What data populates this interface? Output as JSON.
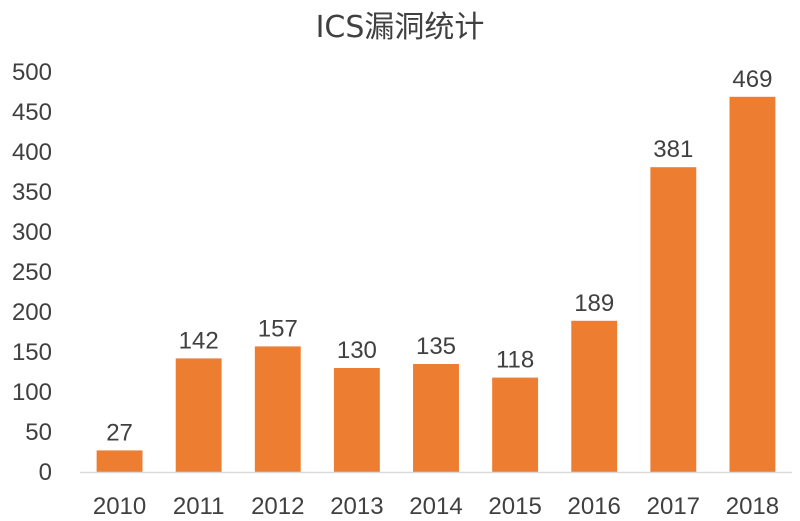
{
  "chart_data": {
    "type": "bar",
    "title": "ICS漏洞统计",
    "xlabel": "",
    "ylabel": "",
    "categories": [
      "2010",
      "2011",
      "2012",
      "2013",
      "2014",
      "2015",
      "2016",
      "2017",
      "2018"
    ],
    "values": [
      27,
      142,
      157,
      130,
      135,
      118,
      189,
      381,
      469
    ],
    "ylim": [
      0,
      500
    ],
    "yticks": [
      0,
      50,
      100,
      150,
      200,
      250,
      300,
      350,
      400,
      450,
      500
    ],
    "grid": false,
    "legend": "none",
    "bar_color": "#ED7D31",
    "axis_color": "#D9D9D9"
  }
}
